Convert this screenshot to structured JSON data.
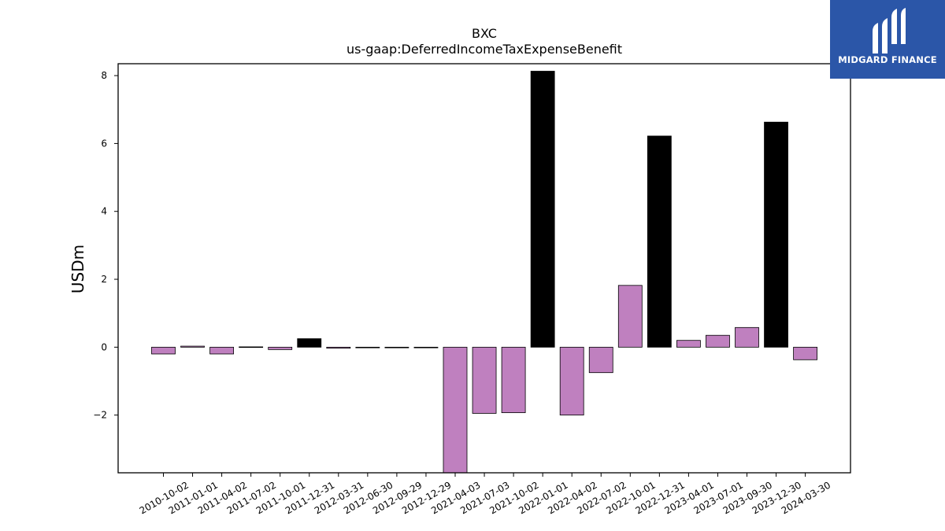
{
  "logo": {
    "text": "MIDGARD FINANCE",
    "background": "#2b56a8"
  },
  "chart_data": {
    "type": "bar",
    "title": "BXC",
    "subtitle": "us-gaap:DeferredIncomeTaxExpenseBenefit",
    "xlabel": "",
    "ylabel": "USDm",
    "ylim": [
      -3.7,
      8.35
    ],
    "yticks": [
      -2,
      0,
      2,
      4,
      6,
      8
    ],
    "ytick_labels": [
      "−2",
      "0",
      "2",
      "4",
      "6",
      "8"
    ],
    "grid": false,
    "legend": "none",
    "colors": {
      "quarterly": "#bf80bf",
      "fiscal_year_end": "#000000"
    },
    "categories": [
      "2010-10-02",
      "2011-01-01",
      "2011-04-02",
      "2011-07-02",
      "2011-10-01",
      "2011-12-31",
      "2012-03-31",
      "2012-06-30",
      "2012-09-29",
      "2012-12-29",
      "2021-04-03",
      "2021-07-03",
      "2021-10-02",
      "2022-01-01",
      "2022-04-02",
      "2022-07-02",
      "2022-10-01",
      "2022-12-31",
      "2023-04-01",
      "2023-07-01",
      "2023-09-30",
      "2023-12-30",
      "2024-03-30"
    ],
    "values": [
      -0.2,
      0.03,
      -0.2,
      0.01,
      -0.07,
      0.25,
      -0.03,
      -0.01,
      -0.01,
      -0.01,
      -3.7,
      -1.95,
      -1.93,
      8.13,
      -2.0,
      -0.75,
      1.82,
      6.22,
      0.2,
      0.35,
      0.58,
      6.63,
      -0.37
    ],
    "highlight": [
      false,
      false,
      false,
      false,
      false,
      true,
      false,
      false,
      false,
      false,
      false,
      false,
      false,
      true,
      false,
      false,
      false,
      true,
      false,
      false,
      false,
      true,
      false
    ]
  }
}
